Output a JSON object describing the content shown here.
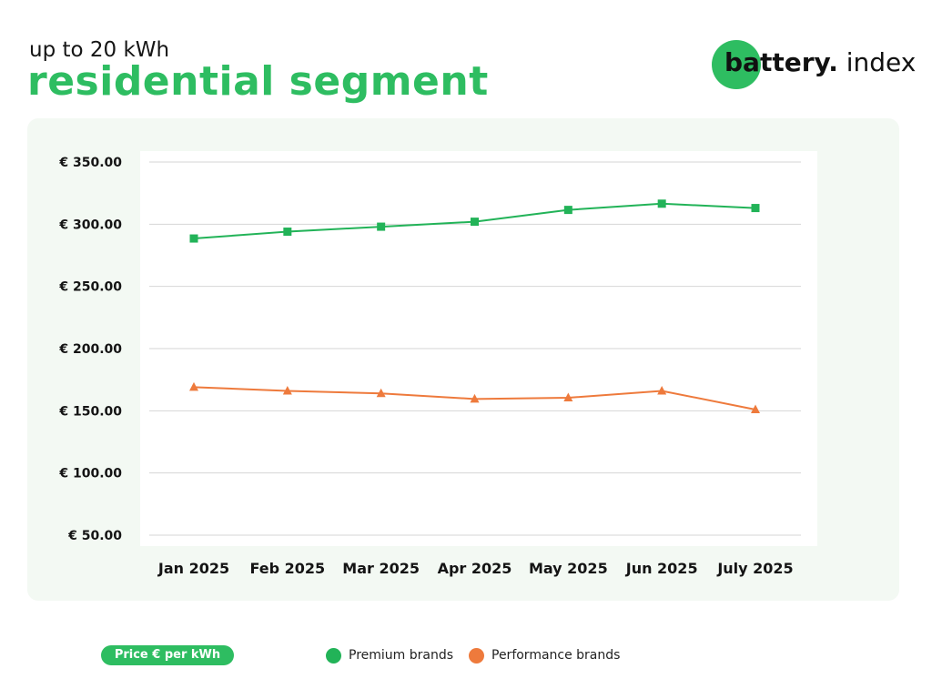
{
  "header": {
    "subtitle": "up to 20 kWh",
    "title": "residential segment"
  },
  "logo": {
    "bold": "battery.",
    "light": " index",
    "accent_color": "#2ebd61"
  },
  "chart_data": {
    "type": "line",
    "categories": [
      "Jan 2025",
      "Feb 2025",
      "Mar 2025",
      "Apr 2025",
      "May 2025",
      "Jun 2025",
      "July 2025"
    ],
    "series": [
      {
        "name": "Premium brands",
        "color": "#22b358",
        "marker": "square",
        "values": [
          288.5,
          294,
          298,
          302,
          311.5,
          316.5,
          313
        ]
      },
      {
        "name": "Performance brands",
        "color": "#ee7a3c",
        "marker": "triangle",
        "values": [
          169,
          166,
          164,
          159.5,
          160.5,
          166,
          151
        ]
      }
    ],
    "y_ticks": [
      "€ 350.00",
      "€ 300.00",
      "€ 250.00",
      "€ 200.00",
      "€ 150.00",
      "€ 100.00",
      "€ 50.00"
    ],
    "y_tick_values": [
      350,
      300,
      250,
      200,
      150,
      100,
      50
    ],
    "ylim": [
      50,
      350
    ],
    "grid": true,
    "legend_position": "bottom",
    "unit_label": "Price € per kWh"
  }
}
